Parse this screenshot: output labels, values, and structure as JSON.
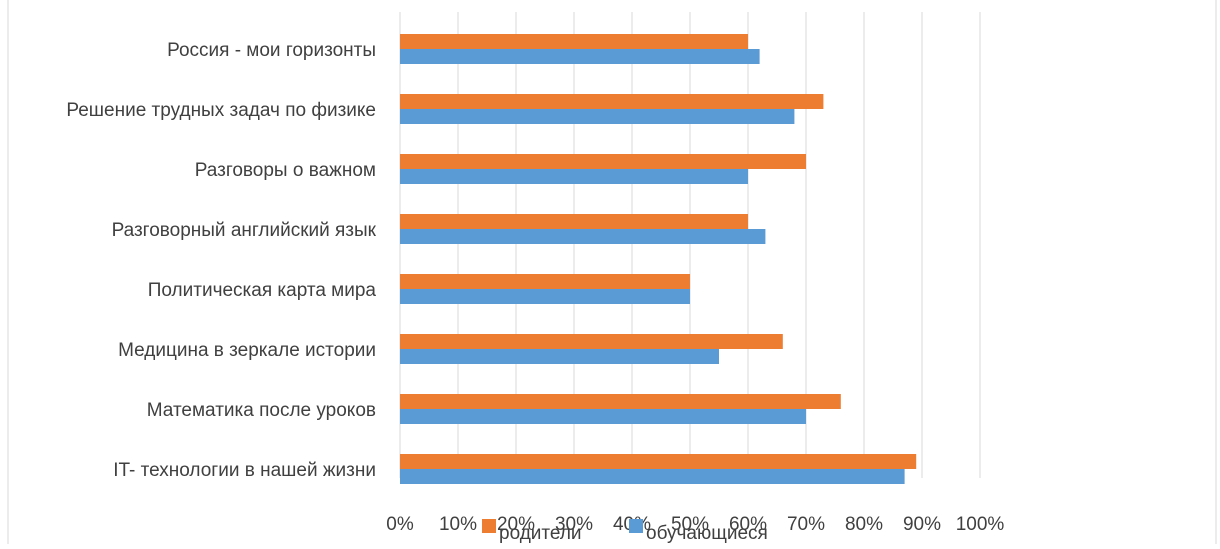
{
  "chart_data": {
    "type": "bar",
    "orientation": "horizontal",
    "categories": [
      "Россия - мои горизонты",
      "Решение трудных задач по физике",
      "Разговоры о важном",
      "Разговорный английский язык",
      "Политическая карта мира",
      "Медицина в зеркале истории",
      "Математика после уроков",
      "IT- технологии в нашей жизни"
    ],
    "series": [
      {
        "name": "родители",
        "color": "#ED7D31",
        "values": [
          60,
          73,
          70,
          60,
          50,
          66,
          76,
          89
        ]
      },
      {
        "name": "обучающиеся",
        "color": "#5B9BD5",
        "values": [
          62,
          68,
          60,
          63,
          50,
          55,
          70,
          87
        ]
      }
    ],
    "xlim": [
      0,
      100
    ],
    "x_ticks": [
      "0%",
      "10%",
      "20%",
      "30%",
      "40%",
      "50%",
      "60%",
      "70%",
      "80%",
      "90%",
      "100%"
    ],
    "grid": true,
    "legend_position": "bottom",
    "gridline_color": "#D9D9D9",
    "frame_color": "#D9D9D9",
    "text_color": "#404040"
  }
}
